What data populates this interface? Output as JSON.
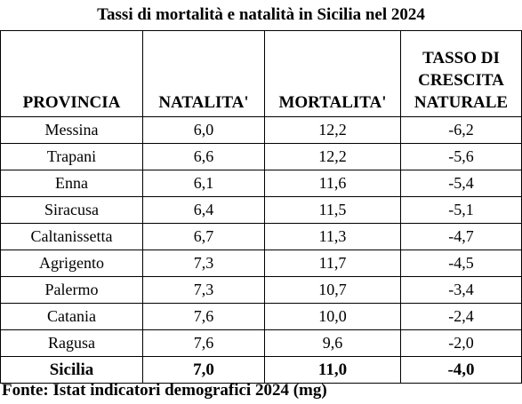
{
  "title": "Tassi di mortalità e natalità in Sicilia nel 2024",
  "headers": {
    "provincia": "PROVINCIA",
    "natalita": "NATALITA'",
    "mortalita": "MORTALITA'",
    "crescita_line1": "TASSO DI",
    "crescita_line2": "CRESCITA",
    "crescita_line3": "NATURALE"
  },
  "rows": [
    {
      "provincia": "Messina",
      "natalita": "6,0",
      "mortalita": "12,2",
      "crescita": "-6,2"
    },
    {
      "provincia": "Trapani",
      "natalita": "6,6",
      "mortalita": "12,2",
      "crescita": "-5,6"
    },
    {
      "provincia": "Enna",
      "natalita": "6,1",
      "mortalita": "11,6",
      "crescita": "-5,4"
    },
    {
      "provincia": "Siracusa",
      "natalita": "6,4",
      "mortalita": "11,5",
      "crescita": "-5,1"
    },
    {
      "provincia": "Caltanissetta",
      "natalita": "6,7",
      "mortalita": "11,3",
      "crescita": "-4,7"
    },
    {
      "provincia": "Agrigento",
      "natalita": "7,3",
      "mortalita": "11,7",
      "crescita": "-4,5"
    },
    {
      "provincia": "Palermo",
      "natalita": "7,3",
      "mortalita": "10,7",
      "crescita": "-3,4"
    },
    {
      "provincia": "Catania",
      "natalita": "7,6",
      "mortalita": "10,0",
      "crescita": "-2,4"
    },
    {
      "provincia": "Ragusa",
      "natalita": "7,6",
      "mortalita": "9,6",
      "crescita": "-2,0"
    }
  ],
  "total": {
    "provincia": "Sicilia",
    "natalita": "7,0",
    "mortalita": "11,0",
    "crescita": "-4,0"
  },
  "footer": "Fonte: Istat indicatori demografici 2024 (mg)"
}
